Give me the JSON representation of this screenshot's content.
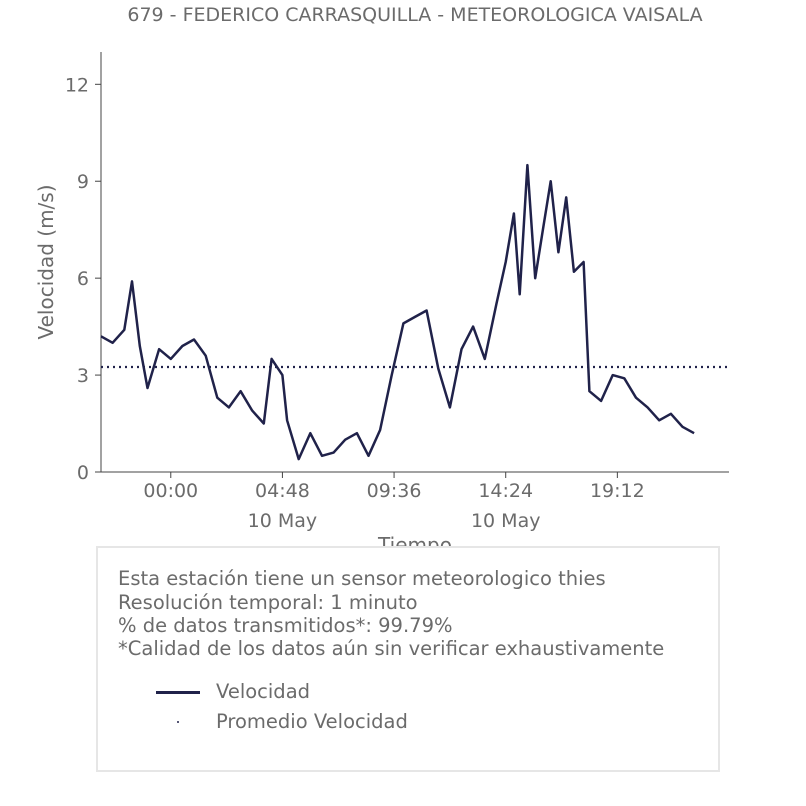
{
  "chart_data": {
    "type": "line",
    "title": "679 - FEDERICO CARRASQUILLA - METEOROLOGICA VAISALA",
    "xlabel": "Tiempo",
    "ylabel": "Velocidad (m/s)",
    "ylim": [
      0,
      13
    ],
    "yticks": [
      0,
      3,
      6,
      9,
      12
    ],
    "x_start": "2023-05-09 21:00",
    "x_end": "2023-05-11 00:00",
    "xticks": [
      {
        "time": "2023-05-10 00:00",
        "label": "00:00",
        "sublabel": ""
      },
      {
        "time": "2023-05-10 04:48",
        "label": "04:48",
        "sublabel": "10 May"
      },
      {
        "time": "2023-05-10 09:36",
        "label": "09:36",
        "sublabel": ""
      },
      {
        "time": "2023-05-10 14:24",
        "label": "14:24",
        "sublabel": "10 May"
      },
      {
        "time": "2023-05-10 19:12",
        "label": "19:12",
        "sublabel": ""
      }
    ],
    "grid": false,
    "series": [
      {
        "name": "Velocidad",
        "color": "#20224a",
        "style": "solid",
        "points": [
          [
            "2023-05-09 21:00",
            4.2
          ],
          [
            "2023-05-09 21:30",
            4.0
          ],
          [
            "2023-05-09 22:00",
            4.4
          ],
          [
            "2023-05-09 22:20",
            5.9
          ],
          [
            "2023-05-09 22:40",
            3.9
          ],
          [
            "2023-05-09 23:00",
            2.6
          ],
          [
            "2023-05-09 23:30",
            3.8
          ],
          [
            "2023-05-10 00:00",
            3.5
          ],
          [
            "2023-05-10 00:30",
            3.9
          ],
          [
            "2023-05-10 01:00",
            4.1
          ],
          [
            "2023-05-10 01:30",
            3.6
          ],
          [
            "2023-05-10 02:00",
            2.3
          ],
          [
            "2023-05-10 02:30",
            2.0
          ],
          [
            "2023-05-10 03:00",
            2.5
          ],
          [
            "2023-05-10 03:30",
            1.9
          ],
          [
            "2023-05-10 04:00",
            1.5
          ],
          [
            "2023-05-10 04:20",
            3.5
          ],
          [
            "2023-05-10 04:48",
            3.0
          ],
          [
            "2023-05-10 05:00",
            1.6
          ],
          [
            "2023-05-10 05:30",
            0.4
          ],
          [
            "2023-05-10 06:00",
            1.2
          ],
          [
            "2023-05-10 06:30",
            0.5
          ],
          [
            "2023-05-10 07:00",
            0.6
          ],
          [
            "2023-05-10 07:30",
            1.0
          ],
          [
            "2023-05-10 08:00",
            1.2
          ],
          [
            "2023-05-10 08:30",
            0.5
          ],
          [
            "2023-05-10 09:00",
            1.3
          ],
          [
            "2023-05-10 09:30",
            3.0
          ],
          [
            "2023-05-10 10:00",
            4.6
          ],
          [
            "2023-05-10 10:30",
            4.8
          ],
          [
            "2023-05-10 11:00",
            5.0
          ],
          [
            "2023-05-10 11:30",
            3.2
          ],
          [
            "2023-05-10 12:00",
            2.0
          ],
          [
            "2023-05-10 12:30",
            3.8
          ],
          [
            "2023-05-10 13:00",
            4.5
          ],
          [
            "2023-05-10 13:30",
            3.5
          ],
          [
            "2023-05-10 14:00",
            5.2
          ],
          [
            "2023-05-10 14:24",
            6.5
          ],
          [
            "2023-05-10 14:45",
            8.0
          ],
          [
            "2023-05-10 15:00",
            5.5
          ],
          [
            "2023-05-10 15:20",
            9.5
          ],
          [
            "2023-05-10 15:40",
            6.0
          ],
          [
            "2023-05-10 16:00",
            7.5
          ],
          [
            "2023-05-10 16:20",
            9.0
          ],
          [
            "2023-05-10 16:40",
            6.8
          ],
          [
            "2023-05-10 17:00",
            8.5
          ],
          [
            "2023-05-10 17:20",
            6.2
          ],
          [
            "2023-05-10 17:45",
            6.5
          ],
          [
            "2023-05-10 18:00",
            2.5
          ],
          [
            "2023-05-10 18:30",
            2.2
          ],
          [
            "2023-05-10 19:00",
            3.0
          ],
          [
            "2023-05-10 19:30",
            2.9
          ],
          [
            "2023-05-10 20:00",
            2.3
          ],
          [
            "2023-05-10 20:30",
            2.0
          ],
          [
            "2023-05-10 21:00",
            1.6
          ],
          [
            "2023-05-10 21:30",
            1.8
          ],
          [
            "2023-05-10 22:00",
            1.4
          ],
          [
            "2023-05-10 22:30",
            1.2
          ]
        ]
      },
      {
        "name": "Promedio Velocidad",
        "color": "#20224a",
        "style": "dotted",
        "value": 3.25
      }
    ]
  },
  "info": {
    "line1": "Esta estación tiene un sensor meteorologico thies",
    "line2": "Resolución temporal: 1 minuto",
    "line3": "% de datos transmitidos*: 99.79%",
    "line4": "*Calidad de los datos aún sin verificar exhaustivamente"
  },
  "legend": {
    "velocidad": "Velocidad",
    "promedio": "Promedio Velocidad"
  }
}
